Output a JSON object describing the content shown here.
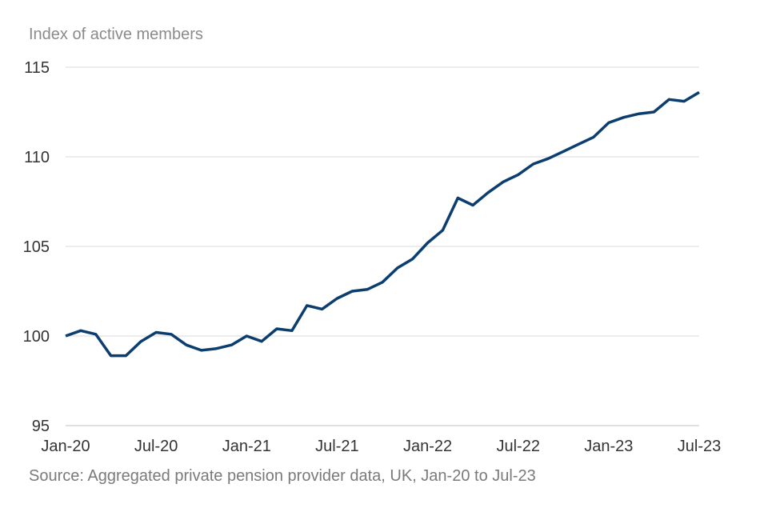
{
  "chart_data": {
    "type": "line",
    "ylabel": "Index of active members",
    "source": "Source: Aggregated private pension provider data, UK, Jan-20 to Jul-23",
    "ylim": [
      95,
      115
    ],
    "yticks": [
      95,
      100,
      105,
      110,
      115
    ],
    "xtick_labels": [
      "Jan-20",
      "Jul-20",
      "Jan-21",
      "Jul-21",
      "Jan-22",
      "Jul-22",
      "Jan-23",
      "Jul-23"
    ],
    "xtick_indices": [
      0,
      6,
      12,
      18,
      24,
      30,
      36,
      42
    ],
    "colors": {
      "line": "#0b3e6f",
      "grid": "#d9d9d9",
      "axis": "#bfbfbf"
    },
    "series": [
      {
        "name": "Index of active members",
        "x": [
          "Jan-20",
          "Feb-20",
          "Mar-20",
          "Apr-20",
          "May-20",
          "Jun-20",
          "Jul-20",
          "Aug-20",
          "Sep-20",
          "Oct-20",
          "Nov-20",
          "Dec-20",
          "Jan-21",
          "Feb-21",
          "Mar-21",
          "Apr-21",
          "May-21",
          "Jun-21",
          "Jul-21",
          "Aug-21",
          "Sep-21",
          "Oct-21",
          "Nov-21",
          "Dec-21",
          "Jan-22",
          "Feb-22",
          "Mar-22",
          "Apr-22",
          "May-22",
          "Jun-22",
          "Jul-22",
          "Aug-22",
          "Sep-22",
          "Oct-22",
          "Nov-22",
          "Dec-22",
          "Jan-23",
          "Feb-23",
          "Mar-23",
          "Apr-23",
          "May-23",
          "Jun-23",
          "Jul-23"
        ],
        "values": [
          100.0,
          100.3,
          100.1,
          98.9,
          98.9,
          99.7,
          100.2,
          100.1,
          99.5,
          99.2,
          99.3,
          99.5,
          100.0,
          99.7,
          100.4,
          100.3,
          101.7,
          101.5,
          102.1,
          102.5,
          102.6,
          103.0,
          103.8,
          104.3,
          105.2,
          105.9,
          107.7,
          107.3,
          108.0,
          108.6,
          109.0,
          109.6,
          109.9,
          110.3,
          110.7,
          111.1,
          111.9,
          112.2,
          112.4,
          112.5,
          113.2,
          113.1,
          113.6
        ]
      }
    ]
  }
}
